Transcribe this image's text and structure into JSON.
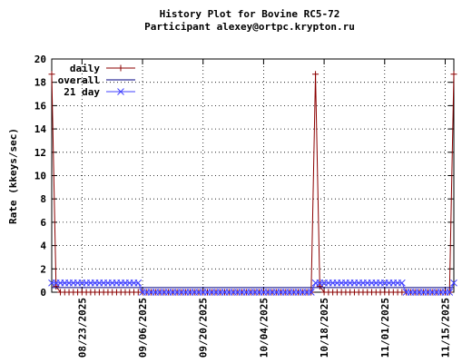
{
  "chart_data": {
    "type": "line",
    "title": "History Plot for Bovine RC5-72",
    "subtitle": "Participant alexey@ortpc.krypton.ru",
    "ylabel": "Rate (kkeys/sec)",
    "x": [
      "2025-08-16",
      "2025-08-17",
      "2025-08-18",
      "2025-08-19",
      "2025-08-20",
      "2025-08-21",
      "2025-08-22",
      "2025-08-23",
      "2025-08-24",
      "2025-08-25",
      "2025-08-26",
      "2025-08-27",
      "2025-08-28",
      "2025-08-29",
      "2025-08-30",
      "2025-08-31",
      "2025-09-01",
      "2025-09-02",
      "2025-09-03",
      "2025-09-04",
      "2025-09-05",
      "2025-09-06",
      "2025-09-07",
      "2025-09-08",
      "2025-09-09",
      "2025-09-10",
      "2025-09-11",
      "2025-09-12",
      "2025-09-13",
      "2025-09-14",
      "2025-09-15",
      "2025-09-16",
      "2025-09-17",
      "2025-09-18",
      "2025-09-19",
      "2025-09-20",
      "2025-09-21",
      "2025-09-22",
      "2025-09-23",
      "2025-09-24",
      "2025-09-25",
      "2025-09-26",
      "2025-09-27",
      "2025-09-28",
      "2025-09-29",
      "2025-09-30",
      "2025-10-01",
      "2025-10-02",
      "2025-10-03",
      "2025-10-04",
      "2025-10-05",
      "2025-10-06",
      "2025-10-07",
      "2025-10-08",
      "2025-10-09",
      "2025-10-10",
      "2025-10-11",
      "2025-10-12",
      "2025-10-13",
      "2025-10-14",
      "2025-10-15",
      "2025-10-16",
      "2025-10-17",
      "2025-10-18",
      "2025-10-19",
      "2025-10-20",
      "2025-10-21",
      "2025-10-22",
      "2025-10-23",
      "2025-10-24",
      "2025-10-25",
      "2025-10-26",
      "2025-10-27",
      "2025-10-28",
      "2025-10-29",
      "2025-10-30",
      "2025-10-31",
      "2025-11-01",
      "2025-11-02",
      "2025-11-03",
      "2025-11-04",
      "2025-11-05",
      "2025-11-06",
      "2025-11-07",
      "2025-11-08",
      "2025-11-09",
      "2025-11-10",
      "2025-11-11",
      "2025-11-12",
      "2025-11-13",
      "2025-11-14",
      "2025-11-15",
      "2025-11-16",
      "2025-11-17"
    ],
    "series": [
      {
        "name": "daily",
        "color": "#8b0000",
        "marker": "plus",
        "values": [
          18.7,
          0.5,
          0,
          0,
          0,
          0,
          0,
          0,
          0,
          0,
          0,
          0,
          0,
          0,
          0,
          0,
          0,
          0,
          0,
          0,
          0,
          0,
          0,
          0,
          0,
          0,
          0,
          0,
          0,
          0,
          0,
          0,
          0,
          0,
          0,
          0,
          0,
          0,
          0,
          0,
          0,
          0,
          0,
          0,
          0,
          0,
          0,
          0,
          0,
          0,
          0,
          0,
          0,
          0,
          0,
          0,
          0,
          0,
          0,
          0,
          0,
          18.7,
          0.5,
          0,
          0,
          0,
          0,
          0,
          0,
          0,
          0,
          0,
          0,
          0,
          0,
          0,
          0,
          0,
          0,
          0,
          0,
          0,
          0,
          0,
          0,
          0,
          0,
          0,
          0,
          0,
          0,
          0,
          0,
          18.7
        ]
      },
      {
        "name": "overall",
        "color": "#000080",
        "values": [
          0.4,
          0.4,
          0.4,
          0.4,
          0.4,
          0.4,
          0.4,
          0.4,
          0.4,
          0.4,
          0.4,
          0.4,
          0.4,
          0.4,
          0.4,
          0.4,
          0.4,
          0.4,
          0.4,
          0.4,
          0.4,
          0.4,
          0.4,
          0.4,
          0.4,
          0.4,
          0.4,
          0.4,
          0.4,
          0.4,
          0.4,
          0.4,
          0.4,
          0.4,
          0.4,
          0.4,
          0.4,
          0.4,
          0.4,
          0.4,
          0.4,
          0.4,
          0.4,
          0.4,
          0.4,
          0.4,
          0.4,
          0.4,
          0.4,
          0.4,
          0.4,
          0.4,
          0.4,
          0.4,
          0.4,
          0.4,
          0.4,
          0.4,
          0.4,
          0.4,
          0.4,
          0.4,
          0.4,
          0.4,
          0.4,
          0.4,
          0.4,
          0.4,
          0.4,
          0.4,
          0.4,
          0.4,
          0.4,
          0.4,
          0.4,
          0.4,
          0.4,
          0.4,
          0.4,
          0.4,
          0.4,
          0.4,
          0.4,
          0.4,
          0.4,
          0.4,
          0.4,
          0.4,
          0.4,
          0.4,
          0.4,
          0.4,
          0.4,
          0.4
        ]
      },
      {
        "name": "21 day",
        "color": "#4040ff",
        "marker": "cross",
        "values": [
          0.8,
          0.8,
          0.8,
          0.8,
          0.8,
          0.8,
          0.8,
          0.8,
          0.8,
          0.8,
          0.8,
          0.8,
          0.8,
          0.8,
          0.8,
          0.8,
          0.8,
          0.8,
          0.8,
          0.8,
          0.8,
          0,
          0,
          0,
          0,
          0,
          0,
          0,
          0,
          0,
          0,
          0,
          0,
          0,
          0,
          0,
          0,
          0,
          0,
          0,
          0,
          0,
          0,
          0,
          0,
          0,
          0,
          0,
          0,
          0,
          0,
          0,
          0,
          0,
          0,
          0,
          0,
          0,
          0,
          0,
          0,
          0.8,
          0.8,
          0.8,
          0.8,
          0.8,
          0.8,
          0.8,
          0.8,
          0.8,
          0.8,
          0.8,
          0.8,
          0.8,
          0.8,
          0.8,
          0.8,
          0.8,
          0.8,
          0.8,
          0.8,
          0.8,
          0,
          0,
          0,
          0,
          0,
          0,
          0,
          0,
          0,
          0,
          0,
          0.8
        ]
      }
    ],
    "xlim": [
      "2025-08-16",
      "2025-11-17"
    ],
    "xticks": [
      {
        "value": "2025-08-23",
        "label": "08/23/2025"
      },
      {
        "value": "2025-09-06",
        "label": "09/06/2025"
      },
      {
        "value": "2025-09-20",
        "label": "09/20/2025"
      },
      {
        "value": "2025-10-04",
        "label": "10/04/2025"
      },
      {
        "value": "2025-10-18",
        "label": "10/18/2025"
      },
      {
        "value": "2025-11-01",
        "label": "11/01/2025"
      },
      {
        "value": "2025-11-15",
        "label": "11/15/2025"
      }
    ],
    "ylim": [
      0,
      20
    ],
    "yticks": [
      0,
      2,
      4,
      6,
      8,
      10,
      12,
      14,
      16,
      18,
      20
    ],
    "grid": true,
    "legend": "top-left"
  }
}
